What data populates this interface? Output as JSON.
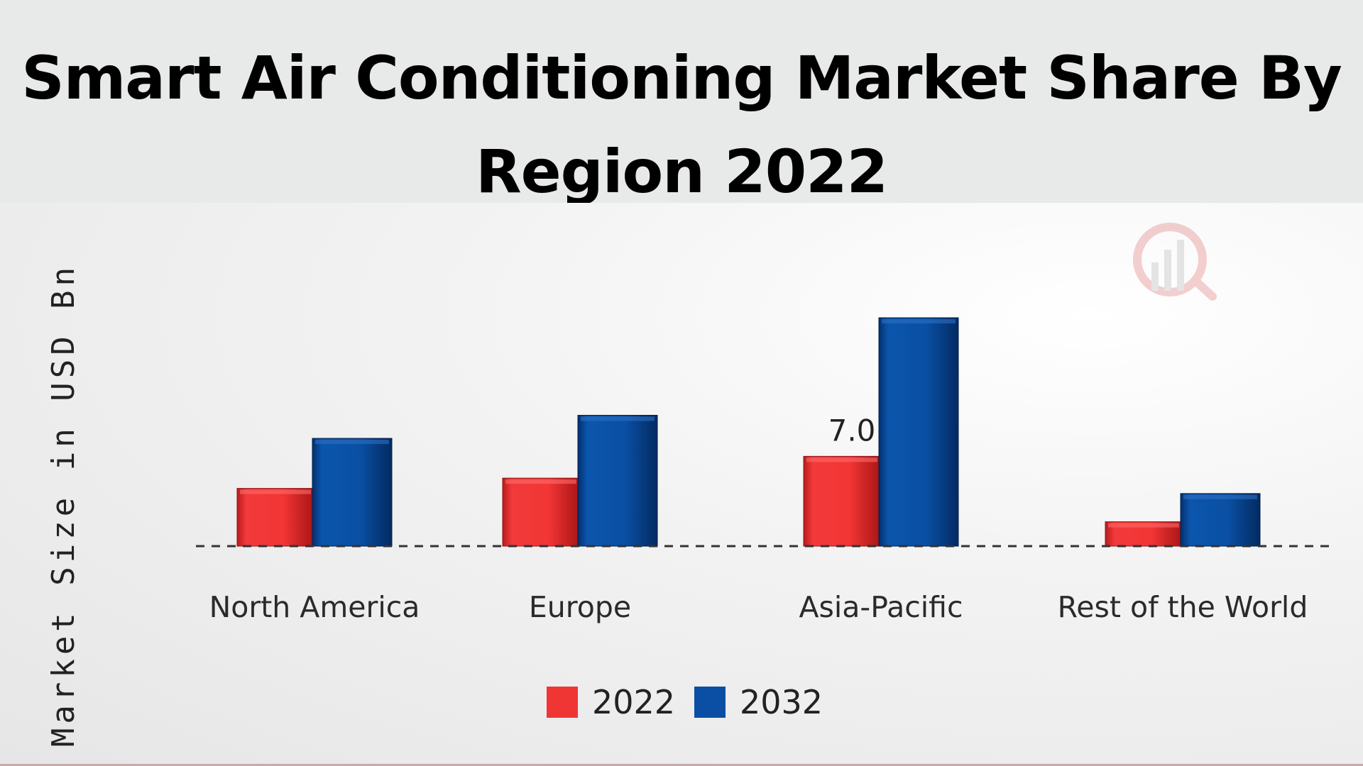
{
  "title": "Smart Air Conditioning Market Share By Region 2022",
  "chart_data": {
    "type": "bar",
    "title": "Smart Air Conditioning Market Share By Region 2022",
    "xlabel": "",
    "ylabel": "Market Size in USD Bn",
    "categories": [
      "North America",
      "Europe",
      "Asia-Pacific",
      "Rest of the World"
    ],
    "series": [
      {
        "name": "2022",
        "color": "#f03535",
        "values": [
          4.5,
          5.3,
          7.0,
          1.9
        ]
      },
      {
        "name": "2032",
        "color": "#0a4fa3",
        "values": [
          8.4,
          10.2,
          17.8,
          4.1
        ]
      }
    ],
    "data_labels": [
      {
        "series": 0,
        "index": 2,
        "text": "7.0"
      }
    ],
    "ylim": [
      0,
      20
    ],
    "grid": false,
    "baseline": "dashed",
    "legend_position": "bottom-center"
  }
}
